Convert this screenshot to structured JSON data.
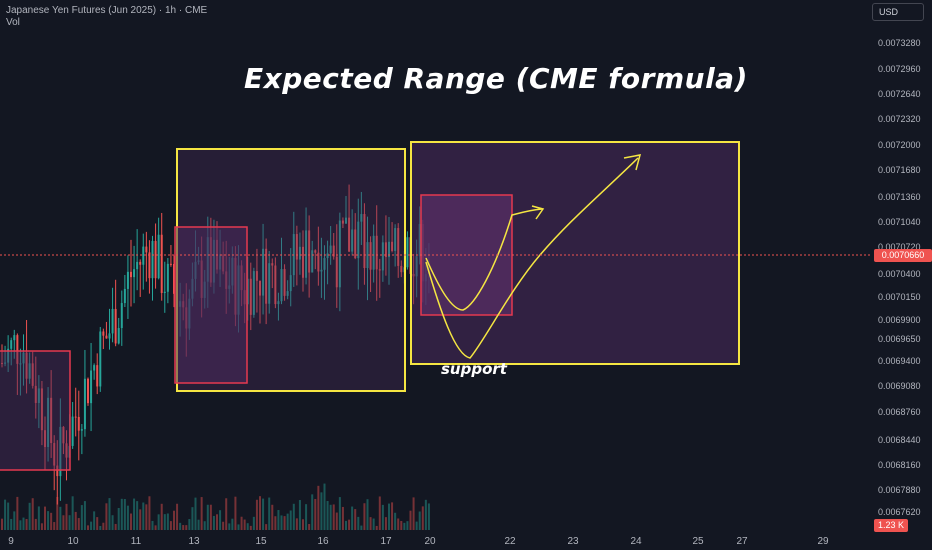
{
  "legend": {
    "symbol": "Japanese Yen Futures (Jun 2025) · 1h · CME",
    "volume_label": "Vol"
  },
  "currency": "USD",
  "annotation": {
    "title": "Expected Range (CME formula)",
    "support_label": "support"
  },
  "price_tags": {
    "last_price": "0.0070660",
    "volume": "1.23 K"
  },
  "colors": {
    "background": "#131722",
    "up": "#26a69a",
    "down": "#ef5350",
    "range_box": "#f5e642",
    "inner_box": "#e53950",
    "box_fill": "#4a2a5c",
    "arrow": "#f5e642"
  },
  "chart_data": {
    "type": "candlestick",
    "y_axis": {
      "tick_labels": [
        "0.0073280",
        "0.0072960",
        "0.0072640",
        "0.0072320",
        "0.0072000",
        "0.0071680",
        "0.0071360",
        "0.0071040",
        "0.0070720",
        "0.0070660",
        "0.0070400",
        "0.0070150",
        "0.0069900",
        "0.0069650",
        "0.0069400",
        "0.0069080",
        "0.0068760",
        "0.0068440",
        "0.0068160",
        "0.0067880",
        "0.0067620"
      ],
      "range": [
        0.00676,
        0.00733
      ]
    },
    "x_axis": {
      "tick_labels": [
        "9",
        "10",
        "11",
        "13",
        "15",
        "16",
        "17",
        "20",
        "22",
        "23",
        "24",
        "25",
        "27",
        "29"
      ]
    },
    "price_path": [
      0.00694,
      0.00697,
      0.0069,
      0.00682,
      0.00688,
      0.00694,
      0.00699,
      0.00705,
      0.00708,
      0.00703,
      0.00701,
      0.00706,
      0.00704,
      0.00703,
      0.00705,
      0.00705,
      0.00707,
      0.00709,
      0.00707,
      0.0071,
      0.00707,
      0.00706,
      0.00708,
      0.00707
    ],
    "last_price": 0.007066
  }
}
